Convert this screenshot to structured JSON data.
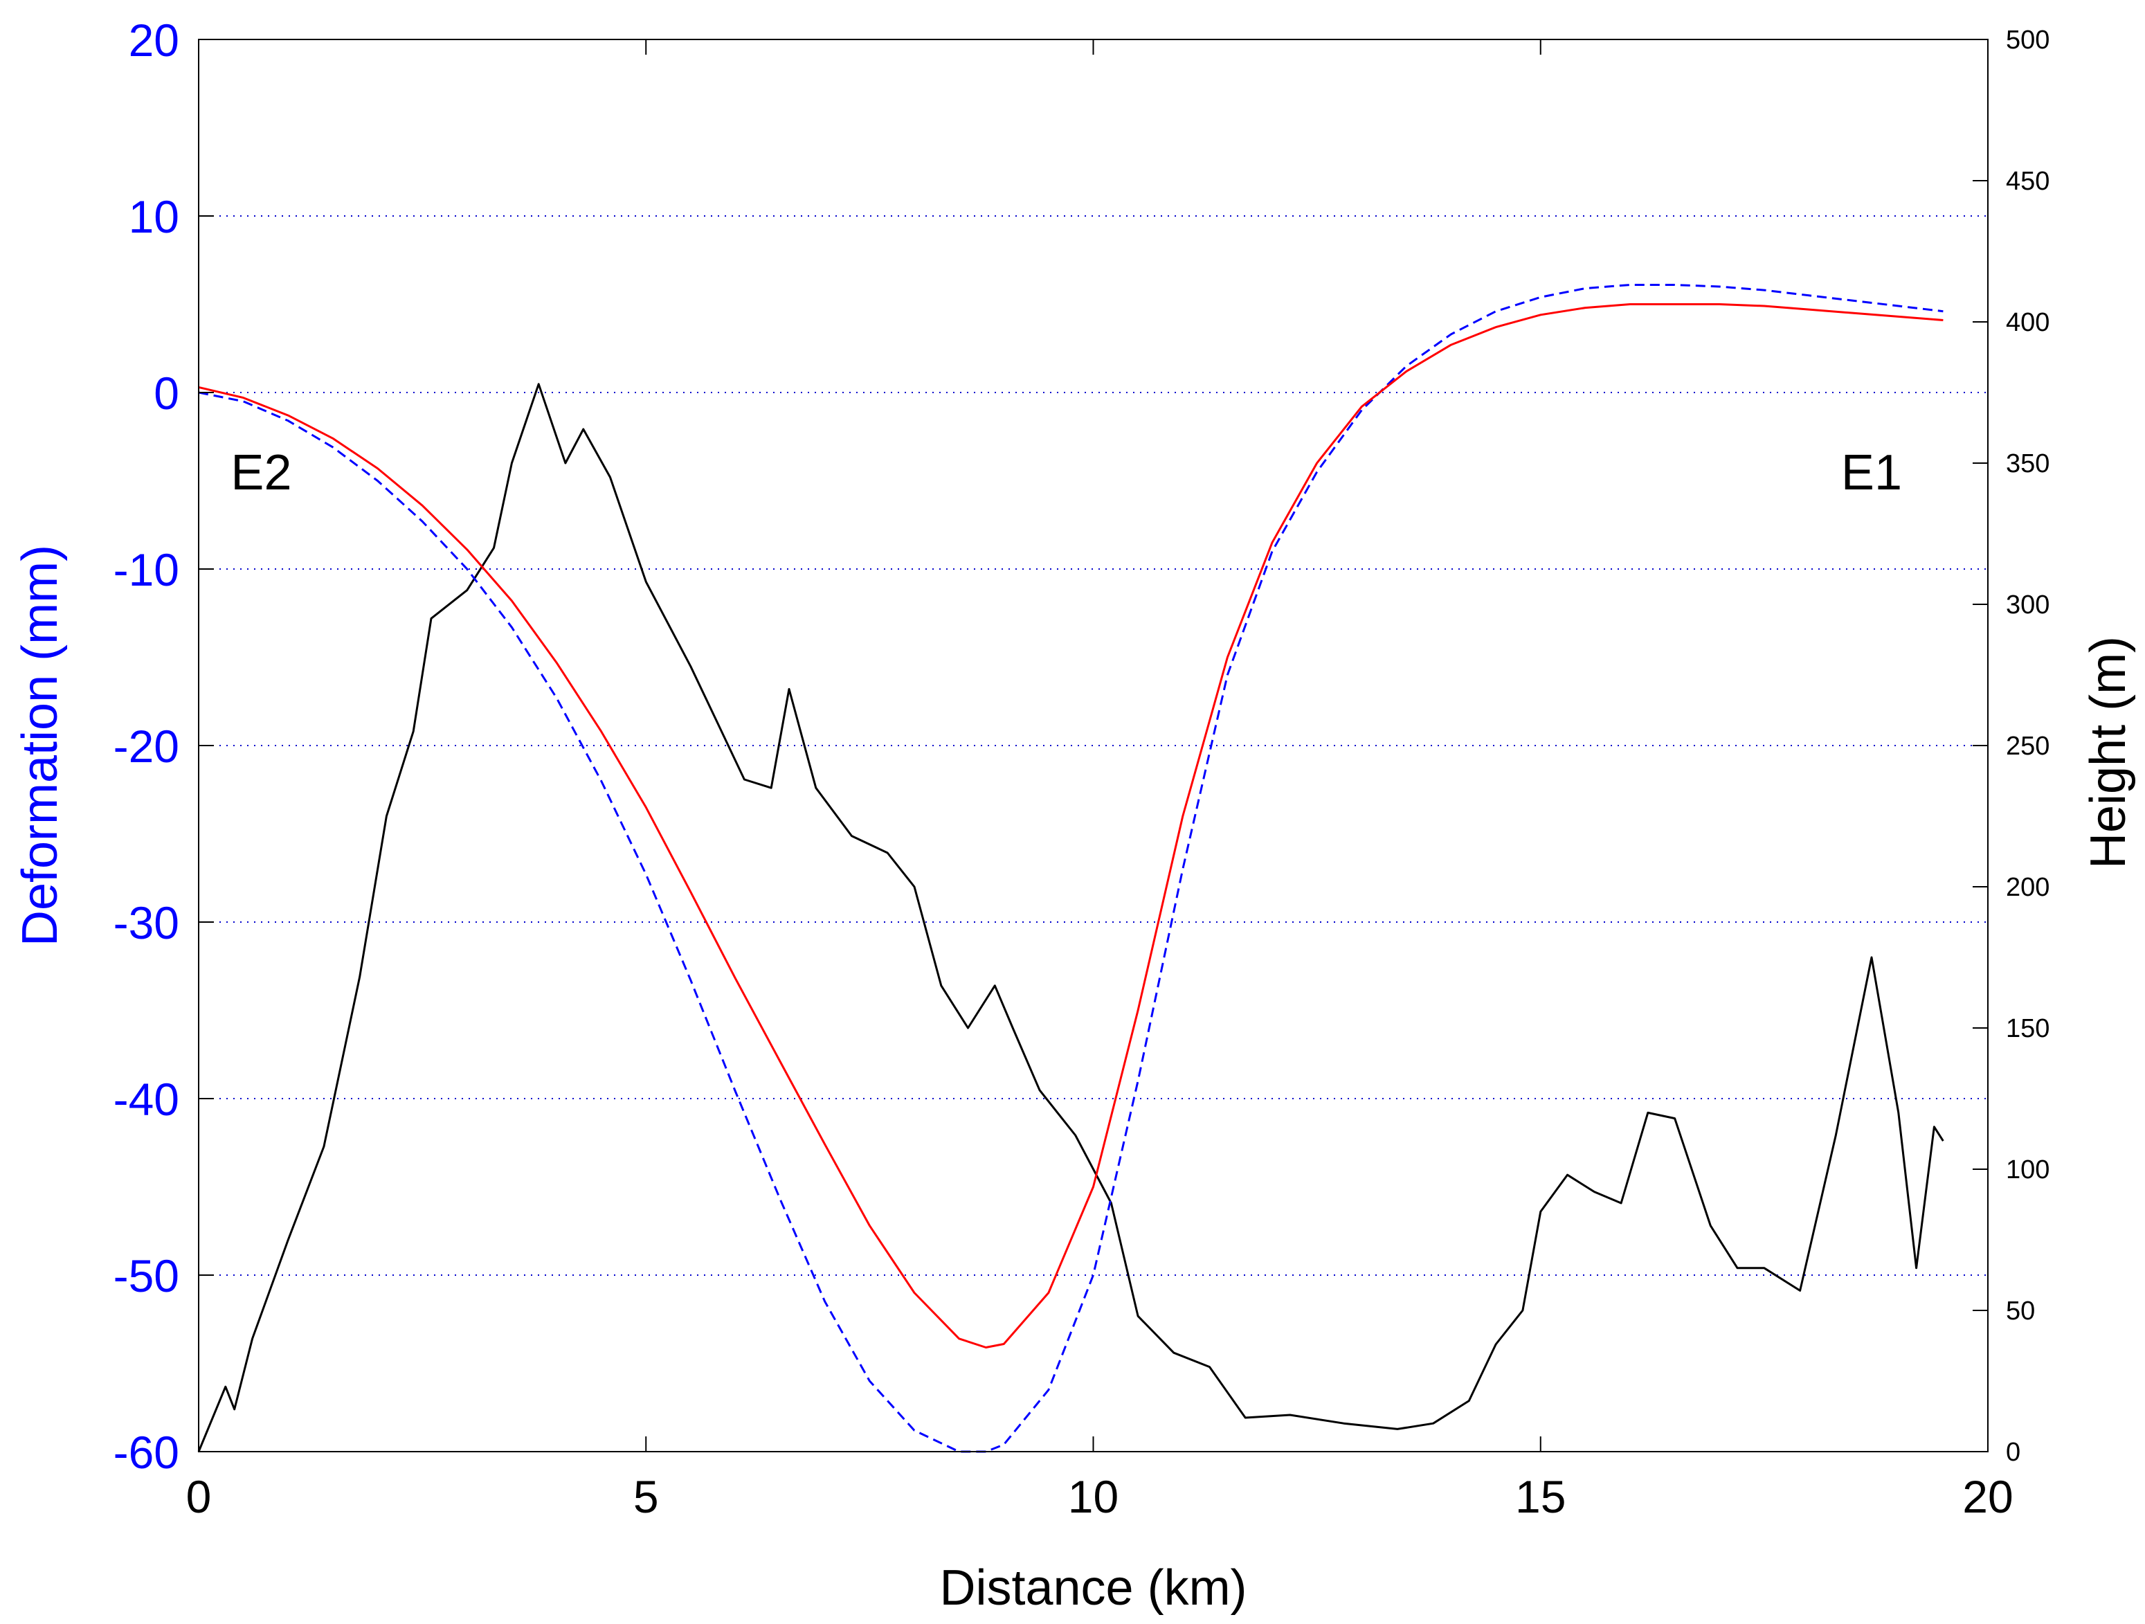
{
  "chart_data": {
    "type": "line",
    "xlabel": "Distance (km)",
    "ylabel_left": "Deformation (mm)",
    "ylabel_right": "Height (m)",
    "xlim": [
      0,
      20
    ],
    "ylim_left": [
      -60,
      20
    ],
    "ylim_right": [
      0,
      500
    ],
    "x_ticks": [
      0,
      5,
      10,
      15,
      20
    ],
    "y_left_ticks": [
      20,
      10,
      0,
      -10,
      -20,
      -30,
      -40,
      -50,
      -60
    ],
    "y_right_ticks": [
      500,
      450,
      400,
      350,
      300,
      250,
      200,
      150,
      100,
      50,
      0
    ],
    "grid": "horizontal-dotted",
    "colors": {
      "left_axis": "#0000ff",
      "red_line": "#ff0000",
      "blue_dashed": "#0000ff",
      "height_line": "#000000",
      "grid": "#0000cc"
    },
    "annotations": [
      {
        "text": "E2",
        "x": 0.7,
        "y": -4.5
      },
      {
        "text": "E1",
        "x": 18.7,
        "y": -4.5
      }
    ],
    "series": [
      {
        "axis": "left",
        "style": "solid",
        "color": "#ff0000",
        "x": [
          0,
          0.5,
          1,
          1.5,
          2,
          2.5,
          3,
          3.5,
          4,
          4.5,
          5,
          5.5,
          6,
          6.5,
          7,
          7.5,
          8,
          8.5,
          8.8,
          9,
          9.5,
          10,
          10.5,
          11,
          11.5,
          12,
          12.5,
          13,
          13.5,
          14,
          14.5,
          15,
          15.5,
          16,
          16.5,
          17,
          17.5,
          18,
          18.5,
          19,
          19.5
        ],
        "values": [
          0.3,
          -0.3,
          -1.3,
          -2.6,
          -4.3,
          -6.4,
          -8.9,
          -11.8,
          -15.3,
          -19.2,
          -23.5,
          -28.3,
          -33.2,
          -37.9,
          -42.6,
          -47.2,
          -51.0,
          -53.6,
          -54.1,
          -53.9,
          -51.0,
          -45.0,
          -35.0,
          -24.0,
          -15.0,
          -8.5,
          -4.0,
          -0.8,
          1.2,
          2.7,
          3.7,
          4.4,
          4.8,
          5.0,
          5.0,
          5.0,
          4.9,
          4.7,
          4.5,
          4.3,
          4.1
        ]
      },
      {
        "axis": "left",
        "style": "dashed",
        "color": "#0000ff",
        "x": [
          0,
          0.5,
          1,
          1.5,
          2,
          2.5,
          3,
          3.5,
          4,
          4.5,
          5,
          5.5,
          6,
          6.5,
          7,
          7.5,
          8,
          8.5,
          8.8,
          9,
          9.5,
          10,
          10.5,
          11,
          11.5,
          12,
          12.5,
          13,
          13.5,
          14,
          14.5,
          15,
          15.5,
          16,
          16.5,
          17,
          17.5,
          18,
          18.5,
          19,
          19.5
        ],
        "values": [
          0.0,
          -0.5,
          -1.6,
          -3.1,
          -5.0,
          -7.3,
          -10.0,
          -13.3,
          -17.3,
          -22.0,
          -27.3,
          -33.3,
          -39.6,
          -45.7,
          -51.5,
          -56.0,
          -58.8,
          -60.0,
          -60.0,
          -59.6,
          -56.5,
          -50.0,
          -39.0,
          -27.0,
          -16.0,
          -9.0,
          -4.5,
          -1.0,
          1.5,
          3.3,
          4.6,
          5.4,
          5.9,
          6.1,
          6.1,
          6.0,
          5.8,
          5.5,
          5.2,
          4.9,
          4.6
        ]
      },
      {
        "axis": "right",
        "style": "solid",
        "color": "#000000",
        "x": [
          0,
          0.3,
          0.4,
          0.6,
          1,
          1.4,
          1.8,
          2.1,
          2.4,
          2.6,
          3,
          3.3,
          3.5,
          3.8,
          4.1,
          4.3,
          4.6,
          5,
          5.5,
          5.8,
          6.1,
          6.4,
          6.6,
          6.9,
          7.3,
          7.7,
          8,
          8.3,
          8.6,
          8.9,
          9.1,
          9.4,
          9.8,
          10.2,
          10.5,
          10.9,
          11.3,
          11.7,
          12.2,
          12.8,
          13.4,
          13.8,
          14.2,
          14.5,
          14.8,
          15,
          15.3,
          15.6,
          15.9,
          16.2,
          16.5,
          16.9,
          17.2,
          17.5,
          17.9,
          18.3,
          18.7,
          19.0,
          19.2,
          19.4,
          19.5
        ],
        "values": [
          0,
          23,
          15,
          40,
          75,
          108,
          168,
          225,
          255,
          295,
          305,
          320,
          350,
          378,
          350,
          362,
          345,
          308,
          278,
          258,
          238,
          235,
          270,
          235,
          218,
          212,
          200,
          165,
          150,
          165,
          150,
          128,
          112,
          88,
          48,
          35,
          30,
          12,
          13,
          10,
          8,
          10,
          18,
          38,
          50,
          85,
          98,
          92,
          88,
          120,
          118,
          80,
          65,
          65,
          57,
          112,
          175,
          120,
          65,
          115,
          110
        ]
      }
    ]
  }
}
